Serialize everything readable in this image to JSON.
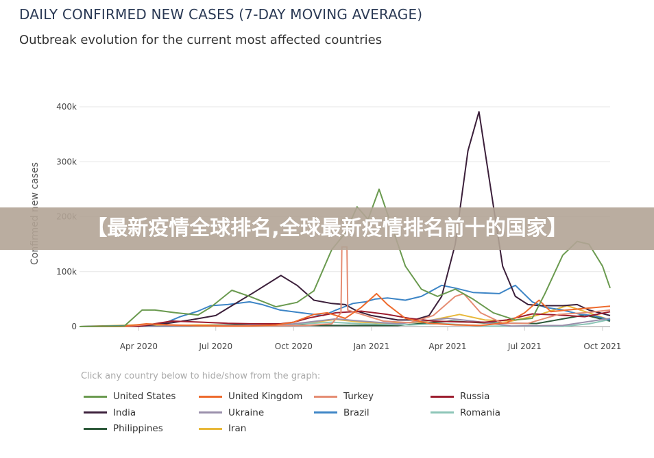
{
  "title": "DAILY CONFIRMED NEW CASES (7-DAY MOVING AVERAGE)",
  "subtitle": "Outbreak evolution for the current most affected countries",
  "hint": "Click any country below to hide/show from the graph:",
  "banner": "【最新疫情全球排名,全球最新疫情排名前十的国家】",
  "chart_data": {
    "type": "line",
    "ylabel": "Confirmed new cases",
    "ylim": [
      0,
      400000
    ],
    "yticks": [
      {
        "v": 0,
        "label": "0"
      },
      {
        "v": 100000,
        "label": "100k"
      },
      {
        "v": 200000,
        "label": "200k"
      },
      {
        "v": 300000,
        "label": "300k"
      },
      {
        "v": 400000,
        "label": "400k"
      }
    ],
    "xlim": [
      "2020-01-22",
      "2021-10-10"
    ],
    "xticks": [
      {
        "d": "2020-04-01",
        "label": "Apr 2020"
      },
      {
        "d": "2020-07-01",
        "label": "Jul 2020"
      },
      {
        "d": "2020-10-01",
        "label": "Oct 2020"
      },
      {
        "d": "2021-01-01",
        "label": "Jan 2021"
      },
      {
        "d": "2021-04-01",
        "label": "Apr 2021"
      },
      {
        "d": "2021-07-01",
        "label": "Jul 2021"
      },
      {
        "d": "2021-10-01",
        "label": "Oct 2021"
      }
    ],
    "grid": true,
    "legend_position": "bottom",
    "series": [
      {
        "name": "United States",
        "color": "#6a9a4f",
        "points": [
          [
            "2020-01-22",
            0
          ],
          [
            "2020-03-15",
            1000
          ],
          [
            "2020-04-05",
            30000
          ],
          [
            "2020-04-20",
            30000
          ],
          [
            "2020-05-15",
            25000
          ],
          [
            "2020-06-10",
            21000
          ],
          [
            "2020-06-25",
            35000
          ],
          [
            "2020-07-20",
            66000
          ],
          [
            "2020-08-10",
            55000
          ],
          [
            "2020-09-10",
            36000
          ],
          [
            "2020-10-05",
            44000
          ],
          [
            "2020-10-25",
            65000
          ],
          [
            "2020-11-15",
            140000
          ],
          [
            "2020-12-01",
            170000
          ],
          [
            "2020-12-15",
            218000
          ],
          [
            "2020-12-28",
            195000
          ],
          [
            "2021-01-10",
            250000
          ],
          [
            "2021-01-20",
            205000
          ],
          [
            "2021-02-10",
            110000
          ],
          [
            "2021-03-01",
            68000
          ],
          [
            "2021-03-20",
            55000
          ],
          [
            "2021-04-10",
            68000
          ],
          [
            "2021-05-01",
            50000
          ],
          [
            "2021-05-25",
            25000
          ],
          [
            "2021-06-20",
            12000
          ],
          [
            "2021-07-10",
            15000
          ],
          [
            "2021-07-25",
            60000
          ],
          [
            "2021-08-15",
            130000
          ],
          [
            "2021-09-01",
            155000
          ],
          [
            "2021-09-15",
            150000
          ],
          [
            "2021-10-01",
            110000
          ],
          [
            "2021-10-10",
            70000
          ]
        ]
      },
      {
        "name": "United Kingdom",
        "color": "#ee6a2c",
        "points": [
          [
            "2020-01-22",
            0
          ],
          [
            "2020-03-10",
            0
          ],
          [
            "2020-04-10",
            5000
          ],
          [
            "2020-05-10",
            3000
          ],
          [
            "2020-06-10",
            1500
          ],
          [
            "2020-07-10",
            700
          ],
          [
            "2020-08-10",
            1000
          ],
          [
            "2020-09-10",
            3000
          ],
          [
            "2020-10-01",
            8000
          ],
          [
            "2020-10-25",
            22000
          ],
          [
            "2020-11-10",
            25000
          ],
          [
            "2020-12-01",
            15000
          ],
          [
            "2020-12-20",
            35000
          ],
          [
            "2021-01-07",
            60000
          ],
          [
            "2021-01-20",
            40000
          ],
          [
            "2021-02-10",
            15000
          ],
          [
            "2021-03-10",
            6000
          ],
          [
            "2021-04-10",
            3000
          ],
          [
            "2021-05-10",
            2000
          ],
          [
            "2021-06-10",
            7000
          ],
          [
            "2021-07-01",
            25000
          ],
          [
            "2021-07-18",
            48000
          ],
          [
            "2021-08-01",
            27000
          ],
          [
            "2021-08-20",
            30000
          ],
          [
            "2021-09-10",
            33000
          ],
          [
            "2021-10-10",
            37000
          ]
        ]
      },
      {
        "name": "Turkey",
        "color": "#e58c72",
        "points": [
          [
            "2020-01-22",
            0
          ],
          [
            "2020-03-15",
            0
          ],
          [
            "2020-04-15",
            4500
          ],
          [
            "2020-05-15",
            2000
          ],
          [
            "2020-06-15",
            1500
          ],
          [
            "2020-07-15",
            1000
          ],
          [
            "2020-08-15",
            1200
          ],
          [
            "2020-09-15",
            1700
          ],
          [
            "2020-10-15",
            2000
          ],
          [
            "2020-11-15",
            5000
          ],
          [
            "2020-11-26",
            25000
          ],
          [
            "2020-11-27",
            145000
          ],
          [
            "2020-12-03",
            145000
          ],
          [
            "2020-12-04",
            30000
          ],
          [
            "2020-12-25",
            20000
          ],
          [
            "2021-01-15",
            10000
          ],
          [
            "2021-02-15",
            7000
          ],
          [
            "2021-03-15",
            20000
          ],
          [
            "2021-04-10",
            55000
          ],
          [
            "2021-04-20",
            60000
          ],
          [
            "2021-05-10",
            25000
          ],
          [
            "2021-06-05",
            6000
          ],
          [
            "2021-07-05",
            6000
          ],
          [
            "2021-08-10",
            22000
          ],
          [
            "2021-09-10",
            25000
          ],
          [
            "2021-10-10",
            30000
          ]
        ]
      },
      {
        "name": "Russia",
        "color": "#9c1c2e",
        "points": [
          [
            "2020-01-22",
            0
          ],
          [
            "2020-04-01",
            500
          ],
          [
            "2020-05-10",
            10000
          ],
          [
            "2020-06-15",
            8000
          ],
          [
            "2020-07-15",
            6000
          ],
          [
            "2020-08-15",
            5000
          ],
          [
            "2020-09-15",
            5000
          ],
          [
            "2020-10-01",
            8000
          ],
          [
            "2020-10-20",
            16000
          ],
          [
            "2020-11-20",
            25000
          ],
          [
            "2020-12-20",
            28000
          ],
          [
            "2021-01-20",
            22000
          ],
          [
            "2021-02-15",
            15000
          ],
          [
            "2021-03-15",
            10000
          ],
          [
            "2021-04-15",
            8500
          ],
          [
            "2021-05-15",
            8000
          ],
          [
            "2021-06-10",
            12000
          ],
          [
            "2021-07-10",
            23000
          ],
          [
            "2021-08-10",
            21000
          ],
          [
            "2021-09-10",
            18000
          ],
          [
            "2021-10-10",
            27000
          ]
        ]
      },
      {
        "name": "India",
        "color": "#3b1f3a",
        "points": [
          [
            "2020-01-22",
            0
          ],
          [
            "2020-04-01",
            1000
          ],
          [
            "2020-05-01",
            5000
          ],
          [
            "2020-06-01",
            12000
          ],
          [
            "2020-07-01",
            20000
          ],
          [
            "2020-07-20",
            38000
          ],
          [
            "2020-08-15",
            62000
          ],
          [
            "2020-09-16",
            93000
          ],
          [
            "2020-10-05",
            75000
          ],
          [
            "2020-10-25",
            48000
          ],
          [
            "2020-11-15",
            42000
          ],
          [
            "2020-12-01",
            40000
          ],
          [
            "2020-12-15",
            28000
          ],
          [
            "2021-01-01",
            20000
          ],
          [
            "2021-02-01",
            12000
          ],
          [
            "2021-02-20",
            12000
          ],
          [
            "2021-03-10",
            20000
          ],
          [
            "2021-03-25",
            55000
          ],
          [
            "2021-04-10",
            150000
          ],
          [
            "2021-04-25",
            320000
          ],
          [
            "2021-05-08",
            391000
          ],
          [
            "2021-05-20",
            270000
          ],
          [
            "2021-06-05",
            110000
          ],
          [
            "2021-06-20",
            55000
          ],
          [
            "2021-07-05",
            40000
          ],
          [
            "2021-07-20",
            38000
          ],
          [
            "2021-08-15",
            38000
          ],
          [
            "2021-09-01",
            40000
          ],
          [
            "2021-09-15",
            30000
          ],
          [
            "2021-10-10",
            20000
          ]
        ]
      },
      {
        "name": "Ukraine",
        "color": "#9a8fab",
        "points": [
          [
            "2020-01-22",
            0
          ],
          [
            "2020-05-01",
            500
          ],
          [
            "2020-08-01",
            2000
          ],
          [
            "2020-10-01",
            5000
          ],
          [
            "2020-11-20",
            14000
          ],
          [
            "2020-12-20",
            10000
          ],
          [
            "2021-02-01",
            5000
          ],
          [
            "2021-04-01",
            15000
          ],
          [
            "2021-05-01",
            10000
          ],
          [
            "2021-06-15",
            1000
          ],
          [
            "2021-08-15",
            2000
          ],
          [
            "2021-10-10",
            15000
          ]
        ]
      },
      {
        "name": "Brazil",
        "color": "#3d85c6",
        "points": [
          [
            "2020-01-22",
            0
          ],
          [
            "2020-04-01",
            2000
          ],
          [
            "2020-05-01",
            6000
          ],
          [
            "2020-05-20",
            18000
          ],
          [
            "2020-06-10",
            28000
          ],
          [
            "2020-06-25",
            38000
          ],
          [
            "2020-07-15",
            40000
          ],
          [
            "2020-08-10",
            45000
          ],
          [
            "2020-08-25",
            40000
          ],
          [
            "2020-09-15",
            30000
          ],
          [
            "2020-10-10",
            25000
          ],
          [
            "2020-11-05",
            20000
          ],
          [
            "2020-11-20",
            30000
          ],
          [
            "2020-12-10",
            42000
          ],
          [
            "2020-12-25",
            45000
          ],
          [
            "2021-01-05",
            50000
          ],
          [
            "2021-01-20",
            52000
          ],
          [
            "2021-02-10",
            48000
          ],
          [
            "2021-03-01",
            55000
          ],
          [
            "2021-03-25",
            75000
          ],
          [
            "2021-04-10",
            70000
          ],
          [
            "2021-05-01",
            62000
          ],
          [
            "2021-06-01",
            60000
          ],
          [
            "2021-06-20",
            75000
          ],
          [
            "2021-07-10",
            45000
          ],
          [
            "2021-07-25",
            35000
          ],
          [
            "2021-08-15",
            30000
          ],
          [
            "2021-09-05",
            22000
          ],
          [
            "2021-09-20",
            20000
          ],
          [
            "2021-10-10",
            12000
          ]
        ]
      },
      {
        "name": "Romania",
        "color": "#8cc5b7",
        "points": [
          [
            "2020-01-22",
            0
          ],
          [
            "2020-06-01",
            300
          ],
          [
            "2020-09-01",
            1500
          ],
          [
            "2020-11-15",
            8000
          ],
          [
            "2020-12-20",
            5000
          ],
          [
            "2021-02-15",
            3000
          ],
          [
            "2021-03-25",
            5500
          ],
          [
            "2021-05-15",
            1000
          ],
          [
            "2021-08-15",
            300
          ],
          [
            "2021-09-15",
            5000
          ],
          [
            "2021-10-10",
            13000
          ]
        ]
      },
      {
        "name": "Philippines",
        "color": "#2e5a3b",
        "points": [
          [
            "2020-01-22",
            0
          ],
          [
            "2020-06-01",
            500
          ],
          [
            "2020-08-10",
            4000
          ],
          [
            "2020-11-01",
            2000
          ],
          [
            "2021-02-01",
            2000
          ],
          [
            "2021-04-05",
            10000
          ],
          [
            "2021-05-15",
            6500
          ],
          [
            "2021-07-15",
            5500
          ],
          [
            "2021-09-10",
            21000
          ],
          [
            "2021-10-10",
            10000
          ]
        ]
      },
      {
        "name": "Iran",
        "color": "#e8b83a",
        "points": [
          [
            "2020-01-22",
            0
          ],
          [
            "2020-03-30",
            3000
          ],
          [
            "2020-05-01",
            1200
          ],
          [
            "2020-06-10",
            3000
          ],
          [
            "2020-08-01",
            2500
          ],
          [
            "2020-10-01",
            3500
          ],
          [
            "2020-11-20",
            13000
          ],
          [
            "2020-12-20",
            8000
          ],
          [
            "2021-01-20",
            6000
          ],
          [
            "2021-03-01",
            8000
          ],
          [
            "2021-04-15",
            22000
          ],
          [
            "2021-05-15",
            12000
          ],
          [
            "2021-06-15",
            10000
          ],
          [
            "2021-07-15",
            20000
          ],
          [
            "2021-08-20",
            38000
          ],
          [
            "2021-09-15",
            25000
          ],
          [
            "2021-10-10",
            12000
          ]
        ]
      }
    ]
  }
}
